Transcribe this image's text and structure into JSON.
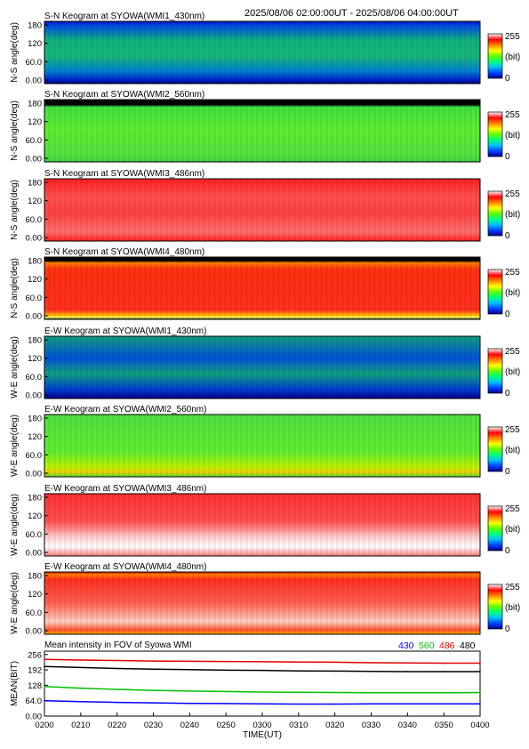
{
  "header": {
    "time_range": "2025/08/06 02:00:00UT - 2025/08/06 04:00:00UT"
  },
  "colorbar": {
    "max_label": "255",
    "unit_label": "(bit)",
    "min_label": "0",
    "colors": [
      "#000090",
      "#0040ff",
      "#00c0ff",
      "#00ff80",
      "#60ff00",
      "#ffff00",
      "#ff8000",
      "#ff0000",
      "#ffffff"
    ]
  },
  "chart_data": [
    {
      "type": "heatmap",
      "title": "S-N Keogram at SYOWA(WMI1_430nm)",
      "ylabel": "N-S angle(deg)",
      "yticks": [
        "180",
        "120",
        "60.0",
        "0.00"
      ],
      "ylim": [
        0,
        180
      ],
      "zlim": [
        0,
        255
      ],
      "field": "blue low, green band"
    },
    {
      "type": "heatmap",
      "title": "S-N Keogram at SYOWA(WMI2_560nm)",
      "ylabel": "N-S angle(deg)",
      "yticks": [
        "180",
        "120",
        "60.0",
        "0.00"
      ],
      "ylim": [
        0,
        180
      ],
      "zlim": [
        0,
        255
      ],
      "field": "green"
    },
    {
      "type": "heatmap",
      "title": "S-N Keogram at SYOWA(WMI3_486nm)",
      "ylabel": "N-S angle(deg)",
      "yticks": [
        "180",
        "120",
        "60.0",
        "0.00"
      ],
      "ylim": [
        0,
        180
      ],
      "zlim": [
        0,
        255
      ],
      "field": "red"
    },
    {
      "type": "heatmap",
      "title": "S-N Keogram at SYOWA(WMI4_480nm)",
      "ylabel": "N-S angle(deg)",
      "yticks": [
        "180",
        "120",
        "60.0",
        "0.00"
      ],
      "ylim": [
        0,
        180
      ],
      "zlim": [
        0,
        255
      ],
      "field": "red"
    },
    {
      "type": "heatmap",
      "title": "E-W Keogram at SYOWA(WMI1_430nm)",
      "ylabel": "W-E angle(deg)",
      "yticks": [
        "180",
        "120",
        "60.0",
        "0.00"
      ],
      "ylim": [
        0,
        180
      ],
      "zlim": [
        0,
        255
      ],
      "field": "blue low, green band"
    },
    {
      "type": "heatmap",
      "title": "E-W Keogram at SYOWA(WMI2_560nm)",
      "ylabel": "W-E angle(deg)",
      "yticks": [
        "180",
        "120",
        "60.0",
        "0.00"
      ],
      "ylim": [
        0,
        180
      ],
      "zlim": [
        0,
        255
      ],
      "field": "green"
    },
    {
      "type": "heatmap",
      "title": "E-W Keogram at SYOWA(WMI3_486nm)",
      "ylabel": "W-E angle(deg)",
      "yticks": [
        "180",
        "120",
        "60.0",
        "0.00"
      ],
      "ylim": [
        0,
        180
      ],
      "zlim": [
        0,
        255
      ],
      "field": "red, white low"
    },
    {
      "type": "heatmap",
      "title": "E-W Keogram at SYOWA(WMI4_480nm)",
      "ylabel": "W-E angle(deg)",
      "yticks": [
        "180",
        "120",
        "60.0",
        "0.00"
      ],
      "ylim": [
        0,
        180
      ],
      "zlim": [
        0,
        255
      ],
      "field": "red"
    },
    {
      "type": "line",
      "title": "Mean intensity in FOV of Syowa WMI",
      "xlabel": "TIME(UT)",
      "ylabel": "MEAN(BIT)",
      "x": [
        "0200",
        "0210",
        "0220",
        "0230",
        "0240",
        "0250",
        "0300",
        "0310",
        "0320",
        "0330",
        "0340",
        "0350",
        "0400"
      ],
      "ylim": [
        0,
        270
      ],
      "yticks": [
        "256",
        "192",
        "128",
        "64.0",
        "0.00"
      ],
      "series": [
        {
          "name": "430",
          "color": "#0000ff",
          "values": [
            64,
            60,
            57,
            55,
            53,
            52,
            51,
            50,
            50,
            51,
            51,
            51,
            51
          ]
        },
        {
          "name": "560",
          "color": "#00c000",
          "values": [
            123,
            116,
            111,
            107,
            104,
            102,
            100,
            99,
            98,
            97,
            97,
            97,
            98
          ]
        },
        {
          "name": "486",
          "color": "#e00000",
          "values": [
            236,
            233,
            231,
            229,
            228,
            227,
            226,
            225,
            224,
            222,
            221,
            220,
            220
          ]
        },
        {
          "name": "480",
          "color": "#000000",
          "values": [
            206,
            202,
            198,
            195,
            193,
            191,
            190,
            188,
            187,
            186,
            185,
            185,
            185
          ]
        }
      ]
    }
  ]
}
